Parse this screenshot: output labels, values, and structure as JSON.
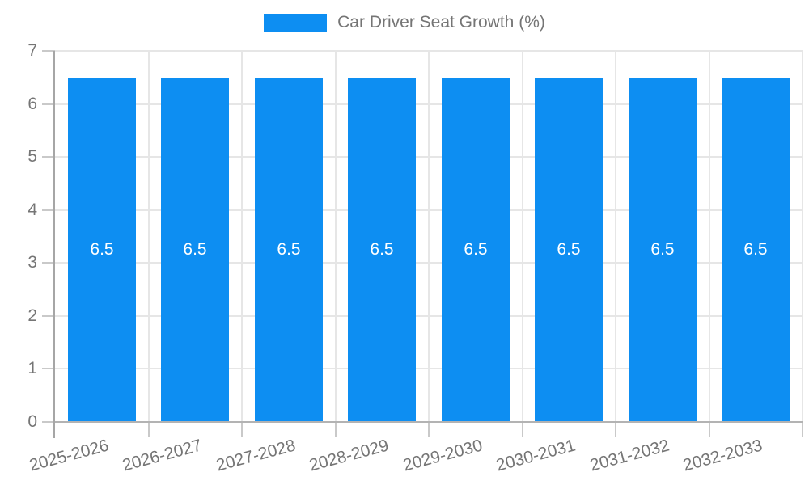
{
  "legend": {
    "label": "Car Driver Seat Growth (%)"
  },
  "chart_data": {
    "type": "bar",
    "title": "Car Driver Seat Growth (%)",
    "categories": [
      "2025-2026",
      "2026-2027",
      "2027-2028",
      "2028-2029",
      "2029-2030",
      "2030-2031",
      "2031-2032",
      "2032-2033"
    ],
    "series": [
      {
        "name": "Car Driver Seat Growth (%)",
        "values": [
          6.5,
          6.5,
          6.5,
          6.5,
          6.5,
          6.5,
          6.5,
          6.5
        ]
      }
    ],
    "value_labels": [
      "6.5",
      "6.5",
      "6.5",
      "6.5",
      "6.5",
      "6.5",
      "6.5",
      "6.5"
    ],
    "xlabel": "",
    "ylabel": "",
    "ylim": [
      0,
      7
    ],
    "yticks": [
      0,
      1,
      2,
      3,
      4,
      5,
      6,
      7
    ],
    "grid": true,
    "legend_position": "top-center",
    "colors": {
      "bar": "#0d8ef2",
      "value_label": "#ffffff",
      "axis_text": "#757575",
      "gridline": "#e6e6e6",
      "tick": "#c9c9c9",
      "x_axis_line": "#b3b3b3",
      "y_axis_line": "#a6a6a6"
    }
  }
}
